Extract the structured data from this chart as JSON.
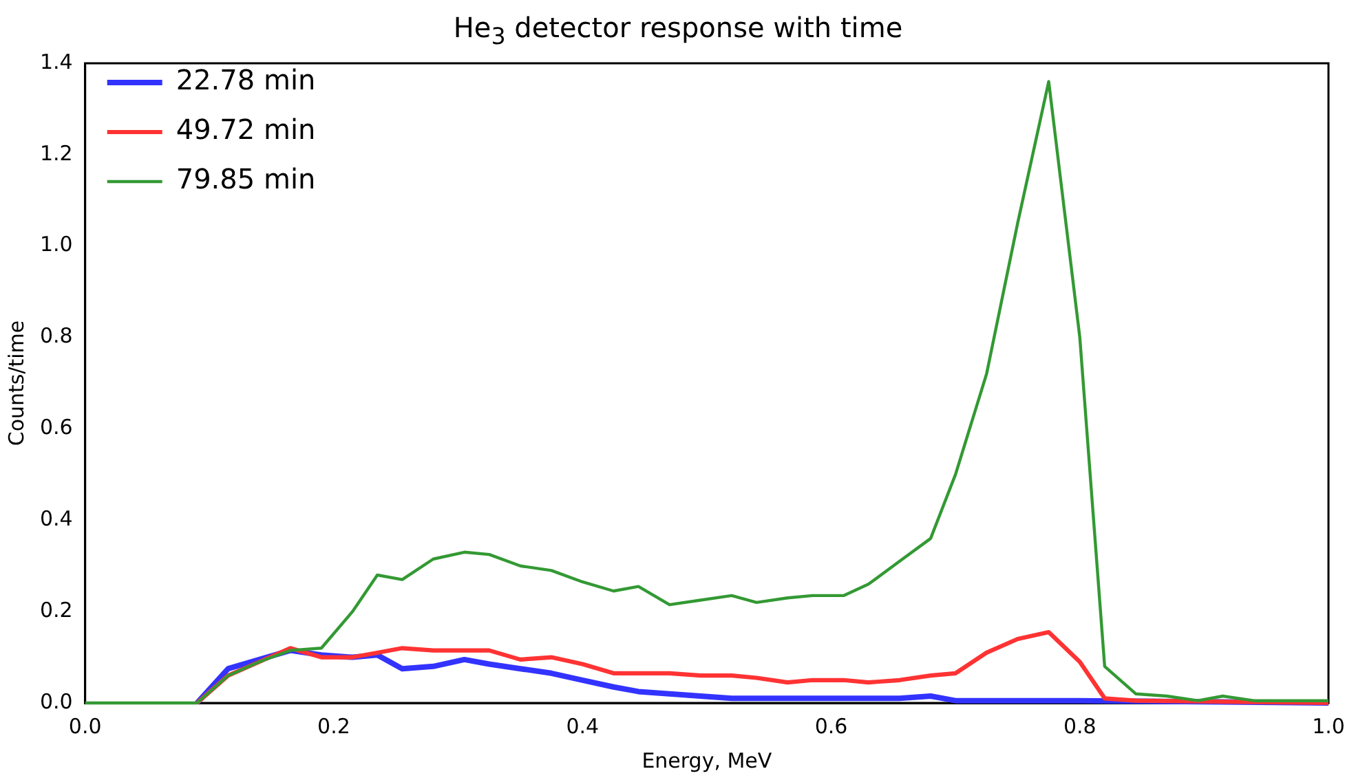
{
  "chart_data": {
    "type": "line",
    "title": "He$_{3}$ detector response with time",
    "xlabel": "Energy, MeV",
    "ylabel": "Counts/time",
    "xlim": [
      0,
      1
    ],
    "xticks": [
      {
        "value": 0,
        "label": "0.0"
      },
      {
        "value": 0.2,
        "label": "0.2"
      },
      {
        "value": 0.4,
        "label": "0.4"
      },
      {
        "value": 0.6,
        "label": "0.6"
      },
      {
        "value": 0.8,
        "label": "0.8"
      },
      {
        "value": 1,
        "label": "1.0"
      }
    ],
    "ylim": [
      0,
      1.4
    ],
    "yticks": [
      {
        "value": 0,
        "label": "0.0"
      },
      {
        "value": 0.2,
        "label": "0.2"
      },
      {
        "value": 0.4,
        "label": "0.4"
      },
      {
        "value": 0.6,
        "label": "0.6"
      },
      {
        "value": 0.8,
        "label": "0.8"
      },
      {
        "value": 1,
        "label": "1.0"
      },
      {
        "value": 1.2,
        "label": "1.2"
      },
      {
        "value": 1.4,
        "label": "1.4"
      }
    ],
    "grid": false,
    "legend": "top left",
    "marker": "none",
    "line_style": "solid",
    "series": [
      {
        "name": "22.78 min",
        "color": "#3333ff",
        "x": [
          0.09,
          0.115,
          0.14,
          0.165,
          0.19,
          0.215,
          0.235,
          0.255,
          0.28,
          0.305,
          0.325,
          0.35,
          0.375,
          0.4,
          0.425,
          0.445,
          0.47,
          0.495,
          0.52,
          0.565,
          0.61,
          0.655,
          0.68,
          0.7,
          0.8,
          1
        ],
        "values": [
          0,
          0.075,
          0.095,
          0.115,
          0.105,
          0.1,
          0.105,
          0.075,
          0.08,
          0.095,
          0.085,
          0.075,
          0.065,
          0.05,
          0.035,
          0.025,
          0.02,
          0.015,
          0.01,
          0.01,
          0.01,
          0.01,
          0.015,
          0.005,
          0.005,
          0
        ]
      },
      {
        "name": "49.72 min",
        "color": "#ff3333",
        "x": [
          0.09,
          0.115,
          0.14,
          0.165,
          0.19,
          0.215,
          0.235,
          0.255,
          0.28,
          0.305,
          0.325,
          0.35,
          0.375,
          0.4,
          0.425,
          0.445,
          0.47,
          0.495,
          0.52,
          0.54,
          0.565,
          0.585,
          0.61,
          0.63,
          0.655,
          0.68,
          0.7,
          0.725,
          0.75,
          0.775,
          0.8,
          0.82,
          0.845,
          1
        ],
        "values": [
          0,
          0.06,
          0.09,
          0.12,
          0.1,
          0.1,
          0.11,
          0.12,
          0.115,
          0.115,
          0.115,
          0.095,
          0.1,
          0.085,
          0.065,
          0.065,
          0.065,
          0.06,
          0.06,
          0.055,
          0.045,
          0.05,
          0.05,
          0.045,
          0.05,
          0.06,
          0.065,
          0.11,
          0.14,
          0.155,
          0.09,
          0.01,
          0.005,
          0
        ]
      },
      {
        "name": "79.85 min",
        "color": "#339933",
        "x": [
          0,
          0.09,
          0.115,
          0.14,
          0.165,
          0.19,
          0.215,
          0.235,
          0.255,
          0.28,
          0.305,
          0.325,
          0.35,
          0.375,
          0.4,
          0.425,
          0.445,
          0.47,
          0.495,
          0.52,
          0.54,
          0.565,
          0.585,
          0.61,
          0.63,
          0.655,
          0.68,
          0.7,
          0.725,
          0.75,
          0.775,
          0.8,
          0.82,
          0.845,
          0.87,
          0.895,
          0.915,
          0.94,
          1
        ],
        "values": [
          0,
          0,
          0.06,
          0.09,
          0.115,
          0.12,
          0.2,
          0.28,
          0.27,
          0.315,
          0.33,
          0.325,
          0.3,
          0.29,
          0.265,
          0.245,
          0.255,
          0.215,
          0.225,
          0.235,
          0.22,
          0.23,
          0.235,
          0.235,
          0.26,
          0.31,
          0.36,
          0.5,
          0.72,
          1.05,
          1.36,
          0.8,
          0.08,
          0.02,
          0.015,
          0.005,
          0.015,
          0.005,
          0.005
        ]
      }
    ]
  }
}
